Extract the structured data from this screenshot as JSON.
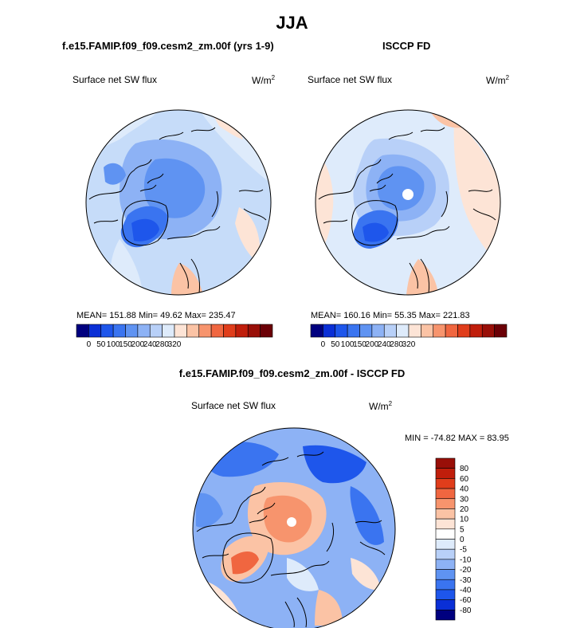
{
  "figure": {
    "title": "JJA"
  },
  "panels": [
    {
      "case_title": "f.e15.FAMIP.f09_f09.cesm2_zm.00f (yrs 1-9)",
      "variable": "Surface net SW flux",
      "units_base": "W/m",
      "units_exp": "2",
      "stats_text": "MEAN= 151.88  Min=  49.62  Max= 235.47"
    },
    {
      "case_title": "ISCCP FD",
      "variable": "Surface net SW flux",
      "units_base": "W/m",
      "units_exp": "2",
      "stats_text": "MEAN= 160.16  Min=  55.35  Max= 221.83"
    },
    {
      "case_title": "f.e15.FAMIP.f09_f09.cesm2_zm.00f - ISCCP FD",
      "variable": "Surface net SW flux",
      "units_base": "W/m",
      "units_exp": "2",
      "stats_text": "MIN = -74.82 MAX =  83.95"
    }
  ],
  "chart_data": [
    {
      "type": "heatmap",
      "projection": "north-polar-stereographic",
      "title": "f.e15.FAMIP.f09_f09.cesm2_zm.00f (yrs 1-9)",
      "variable": "Surface net SW flux",
      "units": "W/m2",
      "mean": 151.88,
      "min": 49.62,
      "max": 235.47,
      "colorbar_ticks": [
        "0",
        "50",
        "100",
        "150",
        "200",
        "240",
        "280",
        "320"
      ],
      "colorbar_colors": [
        "#00007f",
        "#0a2fd6",
        "#1e56eb",
        "#3a74f0",
        "#5f93f2",
        "#8db2f5",
        "#b8d0f8",
        "#deebfb",
        "#fde4d6",
        "#fbc3a5",
        "#f7946d",
        "#f06640",
        "#e03d1b",
        "#c01e0b",
        "#990f08",
        "#6b0006"
      ]
    },
    {
      "type": "heatmap",
      "projection": "north-polar-stereographic",
      "title": "ISCCP FD",
      "variable": "Surface net SW flux",
      "units": "W/m2",
      "mean": 160.16,
      "min": 55.35,
      "max": 221.83,
      "colorbar_ticks": [
        "0",
        "50",
        "100",
        "150",
        "200",
        "240",
        "280",
        "320"
      ],
      "colorbar_colors": [
        "#00007f",
        "#0a2fd6",
        "#1e56eb",
        "#3a74f0",
        "#5f93f2",
        "#8db2f5",
        "#b8d0f8",
        "#deebfb",
        "#fde4d6",
        "#fbc3a5",
        "#f7946d",
        "#f06640",
        "#e03d1b",
        "#c01e0b",
        "#990f08",
        "#6b0006"
      ]
    },
    {
      "type": "heatmap",
      "projection": "north-polar-stereographic",
      "title": "f.e15.FAMIP.f09_f09.cesm2_zm.00f - ISCCP FD",
      "variable": "Surface net SW flux",
      "units": "W/m2",
      "min": -74.82,
      "max": 83.95,
      "colorbar_ticks": [
        "80",
        "60",
        "40",
        "30",
        "20",
        "10",
        "5",
        "0",
        "-5",
        "-10",
        "-20",
        "-30",
        "-40",
        "-60",
        "-80"
      ],
      "colorbar_colors": [
        "#990f08",
        "#c01e0b",
        "#e03d1b",
        "#f06640",
        "#f7946d",
        "#fbc3a5",
        "#fde4d6",
        "#ffffff",
        "#deebfb",
        "#b8d0f8",
        "#8db2f5",
        "#5f93f2",
        "#3a74f0",
        "#1e56eb",
        "#0a2fd6",
        "#00007f"
      ]
    }
  ]
}
